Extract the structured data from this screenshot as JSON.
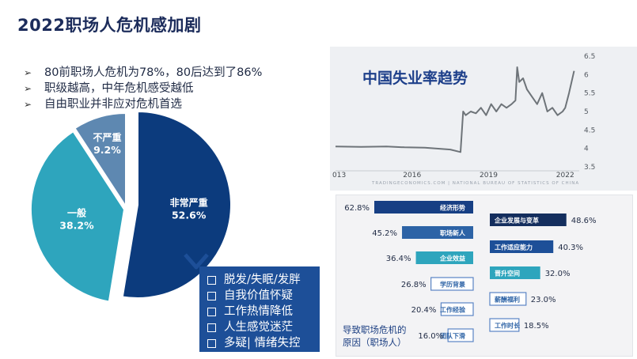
{
  "page": {
    "title": "2022职场人危机感加剧",
    "bullets": [
      "80前职场人危机为78%，80后达到了86%",
      "职级越高，中年危机感受越低",
      "自由职业并非应对危机首选"
    ],
    "bullet_marker": "➢",
    "symptoms": [
      "脱发/失眠/发胖",
      "自我价值怀疑",
      "工作热情降低",
      "人生感觉迷茫",
      "多疑| 情绪失控"
    ],
    "cause_caption": [
      "导致职场危机的",
      "原因（职场人）"
    ],
    "chart_source": "TRADINGECONOMICS.COM  |  NATIONAL BUREAU OF STATISTICS OF CHINA"
  },
  "colors": {
    "navy": "#0c3b7d",
    "teal": "#2ea5bd",
    "slate": "#5e88b1",
    "bar_navy": "#173f84",
    "bar_blue": "#2d63a6",
    "line": "#6e7479"
  },
  "chart_data": [
    {
      "type": "pie",
      "categories": [
        "非常严重",
        "一般",
        "不严重"
      ],
      "values": [
        52.6,
        38.2,
        9.2
      ],
      "labels": [
        "52.6%",
        "38.2%",
        "9.2%"
      ],
      "colors": [
        "#0c3b7d",
        "#2ea5bd",
        "#5e88b1"
      ],
      "exploded": "非常严重"
    },
    {
      "type": "line",
      "title": "中国失业率趋势",
      "x": [
        2013.0,
        2014.0,
        2015.0,
        2015.7,
        2016.5,
        2017.5,
        2017.9,
        2018.0,
        2018.1,
        2018.3,
        2018.5,
        2018.7,
        2018.9,
        2019.1,
        2019.3,
        2019.5,
        2019.7,
        2019.9,
        2020.05,
        2020.12,
        2020.2,
        2020.35,
        2020.5,
        2020.7,
        2020.9,
        2021.1,
        2021.3,
        2021.5,
        2021.7,
        2021.9,
        2022.0,
        2022.15,
        2022.25,
        2022.35
      ],
      "y": [
        4.05,
        4.04,
        4.05,
        4.03,
        4.02,
        3.97,
        3.9,
        5.0,
        4.9,
        5.0,
        4.95,
        5.1,
        4.9,
        5.2,
        5.0,
        5.2,
        5.1,
        5.2,
        5.3,
        6.2,
        5.8,
        5.9,
        5.6,
        5.4,
        5.2,
        5.5,
        5.0,
        5.1,
        4.9,
        5.0,
        5.1,
        5.5,
        5.8,
        6.1
      ],
      "xticks": [
        "013",
        "2016",
        "2019",
        "2022"
      ],
      "xtick_values": [
        2013,
        2016,
        2019,
        2022
      ],
      "yticks": [
        "3.5",
        "4",
        "4.5",
        "5",
        "5.5",
        "6",
        "6.5"
      ],
      "ylim": [
        3.5,
        6.5
      ],
      "xlim": [
        2013,
        2022.55
      ]
    },
    {
      "type": "bar",
      "orientation": "horizontal",
      "groups": [
        {
          "categories": [
            "经济形势",
            "职场新人",
            "企业效益",
            "学历背景",
            "工作经验",
            "团队下滑"
          ],
          "values": [
            62.8,
            45.2,
            36.4,
            26.8,
            20.4,
            16.0
          ],
          "labels": [
            "62.8%",
            "45.2%",
            "36.4%",
            "26.8%",
            "20.4%",
            "16.0%"
          ]
        },
        {
          "categories": [
            "企业发展与变革",
            "工作适应能力",
            "晋升空间",
            "薪酬福利",
            "工作时长"
          ],
          "values": [
            48.6,
            40.3,
            32.0,
            23.0,
            18.5
          ],
          "labels": [
            "48.6%",
            "40.3%",
            "32.0%",
            "23.0%",
            "18.5%"
          ]
        }
      ]
    }
  ]
}
